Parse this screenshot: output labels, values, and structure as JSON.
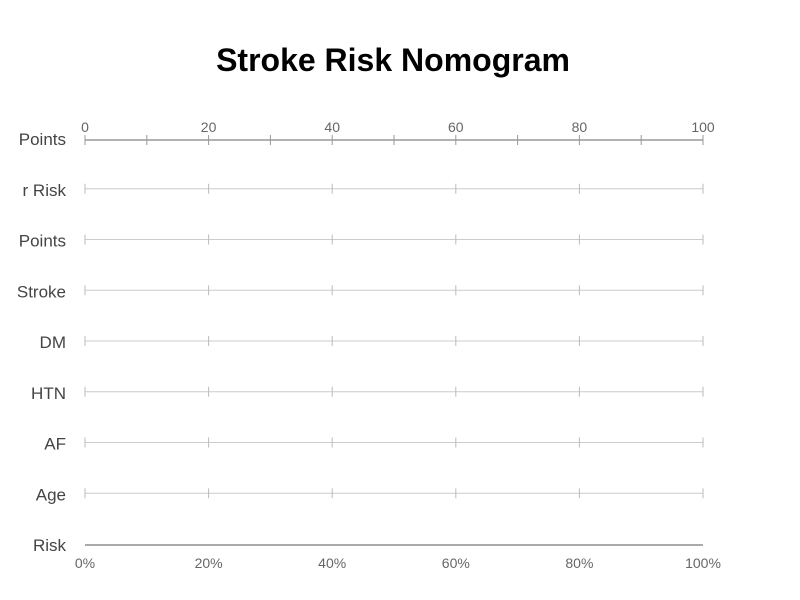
{
  "chart_data": {
    "type": "nomogram",
    "title": "Stroke Risk Nomogram",
    "top_axis": {
      "ticks": [
        "0",
        "20",
        "40",
        "60",
        "80",
        "100"
      ],
      "range": [
        0,
        100
      ],
      "major_step": 20,
      "minor_step": 10
    },
    "rows": [
      {
        "label": "Points"
      },
      {
        "label": "r Risk"
      },
      {
        "label": "Points"
      },
      {
        "label": "Stroke"
      },
      {
        "label": "DM"
      },
      {
        "label": "HTN"
      },
      {
        "label": "AF"
      },
      {
        "label": "Age"
      },
      {
        "label": "Risk"
      }
    ],
    "bottom_axis": {
      "ticks": [
        "0%",
        "20%",
        "40%",
        "60%",
        "80%",
        "100%"
      ],
      "range": [
        0,
        100
      ]
    },
    "grid": false
  }
}
